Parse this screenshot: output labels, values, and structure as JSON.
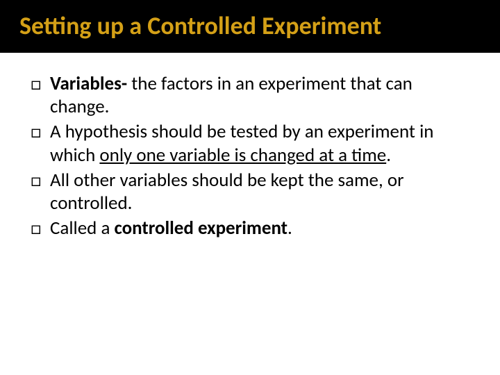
{
  "title": {
    "text": "Setting up a Controlled Experiment",
    "color": "#d4a017",
    "background": "#000000",
    "fontsize": 36,
    "fontweight": "bold"
  },
  "body": {
    "fontsize": 27,
    "color": "#000000",
    "bullet_glyph": "□",
    "items": [
      {
        "bold0": "Variables-",
        "rest0": " the factors in an experiment that can change."
      },
      {
        "plain1a": "A hypothesis should be tested by an experiment in which ",
        "u1": "only one variable is changed at a time",
        "plain1b": "."
      },
      {
        "plain2": "All other variables should be kept the same, or controlled."
      },
      {
        "plain3a": "Called a ",
        "bold3": "controlled experiment",
        "plain3b": "."
      }
    ]
  }
}
